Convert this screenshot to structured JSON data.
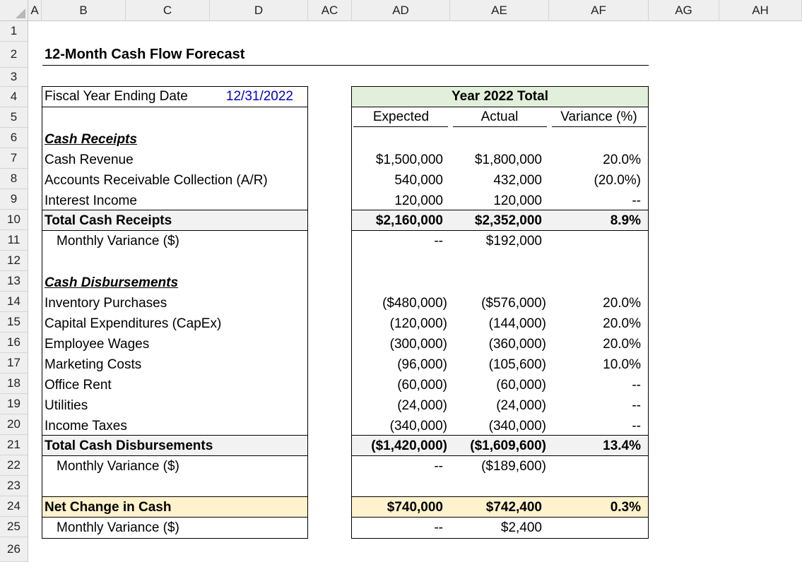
{
  "columns": [
    "A",
    "B",
    "C",
    "D",
    "AC",
    "AD",
    "AE",
    "AF",
    "AG",
    "AH"
  ],
  "rows": [
    "1",
    "2",
    "3",
    "4",
    "5",
    "6",
    "7",
    "8",
    "9",
    "10",
    "11",
    "12",
    "13",
    "14",
    "15",
    "16",
    "17",
    "18",
    "19",
    "20",
    "21",
    "22",
    "23",
    "24",
    "25",
    "26"
  ],
  "title": "12-Month Cash Flow Forecast",
  "fiscal_label": "Fiscal Year Ending Date",
  "fiscal_value": "12/31/2022",
  "summary_header": "Year 2022 Total",
  "subheaders": {
    "expected": "Expected",
    "actual": "Actual",
    "variance": "Variance (%)"
  },
  "receipts_header": "Cash Receipts",
  "receipts": [
    {
      "label": "Cash Revenue",
      "expected": "$1,500,000",
      "actual": "$1,800,000",
      "variance": "20.0%"
    },
    {
      "label": "Accounts Receivable Collection (A/R)",
      "expected": "540,000",
      "actual": "432,000",
      "variance": "(20.0%)"
    },
    {
      "label": "Interest Income",
      "expected": "120,000",
      "actual": "120,000",
      "variance": "--"
    }
  ],
  "total_receipts": {
    "label": "Total Cash Receipts",
    "expected": "$2,160,000",
    "actual": "$2,352,000",
    "variance": "8.9%"
  },
  "receipts_monthly": {
    "label": "Monthly Variance ($)",
    "expected": "--",
    "actual": "$192,000"
  },
  "disbursements_header": "Cash Disbursements",
  "disbursements": [
    {
      "label": "Inventory Purchases",
      "expected": "($480,000)",
      "actual": "($576,000)",
      "variance": "20.0%"
    },
    {
      "label": "Capital Expenditures (CapEx)",
      "expected": "(120,000)",
      "actual": "(144,000)",
      "variance": "20.0%"
    },
    {
      "label": "Employee Wages",
      "expected": "(300,000)",
      "actual": "(360,000)",
      "variance": "20.0%"
    },
    {
      "label": "Marketing Costs",
      "expected": "(96,000)",
      "actual": "(105,600)",
      "variance": "10.0%"
    },
    {
      "label": "Office Rent",
      "expected": "(60,000)",
      "actual": "(60,000)",
      "variance": "--"
    },
    {
      "label": "Utilities",
      "expected": "(24,000)",
      "actual": "(24,000)",
      "variance": "--"
    },
    {
      "label": "Income Taxes",
      "expected": "(340,000)",
      "actual": "(340,000)",
      "variance": "--"
    }
  ],
  "total_disbursements": {
    "label": "Total Cash Disbursements",
    "expected": "($1,420,000)",
    "actual": "($1,609,600)",
    "variance": "13.4%"
  },
  "disbursements_monthly": {
    "label": "Monthly Variance ($)",
    "expected": "--",
    "actual": "($189,600)"
  },
  "net_change": {
    "label": "Net Change in Cash",
    "expected": "$740,000",
    "actual": "$742,400",
    "variance": "0.3%"
  },
  "net_monthly": {
    "label": "Monthly Variance ($)",
    "expected": "--",
    "actual": "$2,400"
  },
  "colors": {
    "header_bg": "#efefef",
    "summary_green": "#e2efda",
    "total_gray": "#f2f2f2",
    "net_orange": "#fff2cc",
    "date_blue": "#0000cc"
  }
}
